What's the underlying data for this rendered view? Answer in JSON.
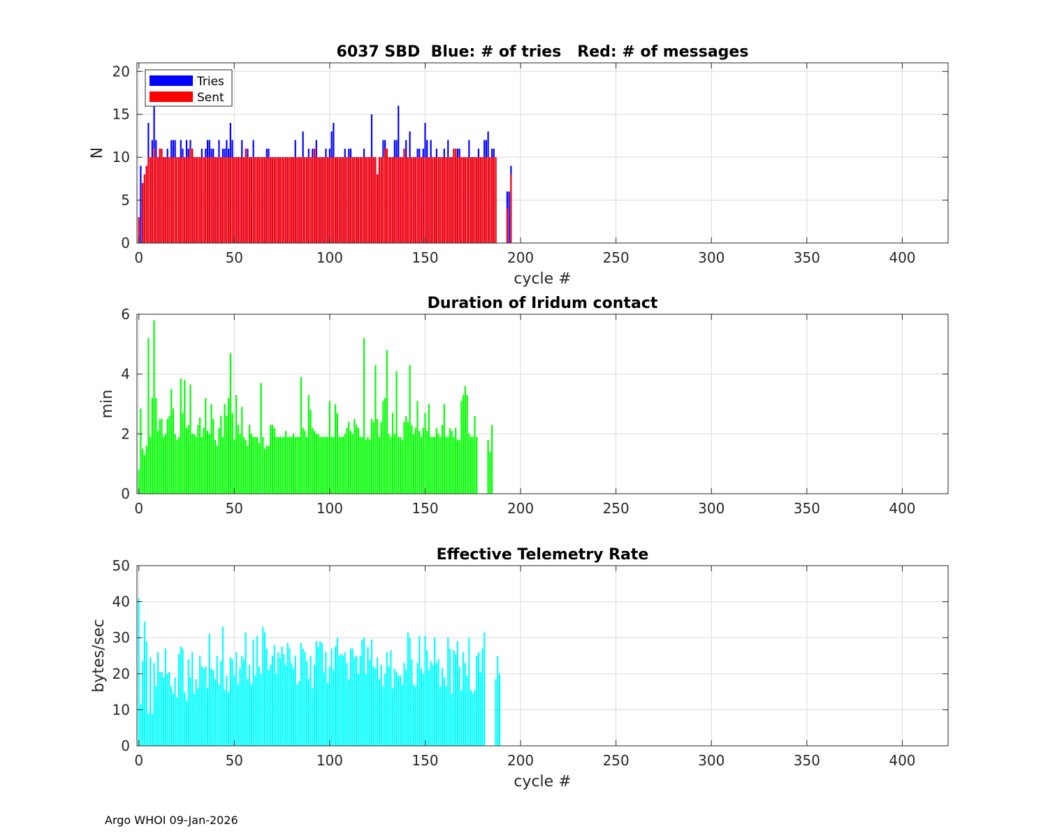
{
  "footer": "Argo WHOI 09-Jan-2026",
  "colors": {
    "tries": "#0000ff",
    "sent": "#ff0000",
    "duration": "#00ff00",
    "rate": "#00ffff",
    "grid": "#d9d9d9"
  },
  "chart_data": [
    {
      "type": "bar",
      "title": "6037 SBD  Blue: # of tries   Red: # of messages",
      "xlabel": "cycle #",
      "ylabel": "N",
      "xlim": [
        -1,
        424
      ],
      "ylim": [
        0,
        21
      ],
      "xticks": [
        0,
        50,
        100,
        150,
        200,
        250,
        300,
        350,
        400
      ],
      "yticks": [
        0,
        5,
        10,
        15,
        20
      ],
      "grid": true,
      "legend_position": "top-left",
      "x_start": 0,
      "series": [
        {
          "name": "Tries",
          "color": "#0000ff",
          "values": [
            3,
            9,
            7,
            8,
            9,
            14,
            10,
            12,
            16,
            12,
            10,
            11,
            11,
            10,
            10,
            11,
            10,
            12,
            12,
            12,
            10,
            10,
            12,
            11,
            10,
            12,
            11,
            12,
            11,
            10,
            10,
            10,
            10,
            11,
            10,
            11,
            12,
            12,
            11,
            11,
            10,
            10,
            12,
            10,
            11,
            11,
            12,
            11,
            14,
            12,
            10,
            10,
            10,
            10,
            12,
            10,
            10,
            11,
            10,
            10,
            12,
            10,
            10,
            10,
            10,
            10,
            10,
            11,
            11,
            10,
            10,
            10,
            10,
            10,
            10,
            10,
            10,
            10,
            10,
            10,
            10,
            10,
            12,
            10,
            10,
            10,
            13,
            10,
            10,
            11,
            10,
            11,
            10,
            12,
            10,
            10,
            10,
            10,
            11,
            10,
            11,
            13,
            14,
            10,
            10,
            10,
            10,
            10,
            11,
            10,
            11,
            11,
            10,
            10,
            10,
            10,
            10,
            10,
            11,
            10,
            10,
            10,
            15,
            10,
            10,
            8,
            10,
            10,
            12,
            12,
            11,
            10,
            10,
            10,
            12,
            12,
            16,
            10,
            10,
            11,
            12,
            10,
            13,
            10,
            10,
            10,
            11,
            11,
            10,
            11,
            14,
            12,
            10,
            12,
            10,
            10,
            11,
            10,
            10,
            10,
            11,
            10,
            12,
            10,
            10,
            11,
            10,
            11,
            11,
            10,
            10,
            10,
            10,
            12,
            10,
            10,
            10,
            10,
            11,
            10,
            10,
            12,
            12,
            13,
            10,
            11,
            11,
            10,
            0,
            0,
            0,
            0,
            0,
            6,
            6,
            9
          ]
        },
        {
          "name": "Sent",
          "color": "#ff0000",
          "values": [
            3,
            0,
            7,
            8,
            9,
            10,
            10,
            10,
            11,
            10,
            10,
            11,
            11,
            10,
            10,
            10,
            10,
            10,
            10,
            10,
            10,
            10,
            10,
            10,
            10,
            10,
            10,
            11,
            11,
            10,
            10,
            10,
            10,
            10,
            10,
            10,
            10,
            10,
            10,
            10,
            10,
            10,
            10,
            10,
            10,
            10,
            10,
            10,
            10,
            10,
            10,
            10,
            10,
            10,
            10,
            10,
            11,
            10,
            10,
            10,
            10,
            10,
            10,
            10,
            10,
            10,
            10,
            10,
            10,
            10,
            10,
            10,
            10,
            10,
            10,
            10,
            10,
            10,
            10,
            10,
            10,
            10,
            10,
            10,
            10,
            10,
            10,
            10,
            10,
            10,
            10,
            10,
            11,
            10,
            10,
            10,
            10,
            10,
            10,
            10,
            10,
            10,
            10,
            10,
            10,
            10,
            10,
            10,
            10,
            10,
            10,
            10,
            10,
            10,
            10,
            10,
            10,
            10,
            10,
            10,
            10,
            10,
            10,
            10,
            10,
            8,
            10,
            10,
            10,
            11,
            11,
            10,
            10,
            10,
            10,
            10,
            10,
            10,
            10,
            11,
            10,
            10,
            10,
            10,
            10,
            10,
            10,
            10,
            10,
            10,
            10,
            10,
            10,
            10,
            10,
            10,
            10,
            10,
            10,
            10,
            10,
            10,
            10,
            10,
            10,
            11,
            11,
            10,
            10,
            10,
            10,
            10,
            10,
            10,
            10,
            10,
            10,
            10,
            10,
            10,
            10,
            10,
            10,
            10,
            10,
            10,
            10,
            10,
            0,
            0,
            0,
            0,
            0,
            4,
            0,
            8
          ]
        }
      ]
    },
    {
      "type": "bar",
      "title": "Duration of Iridum contact",
      "xlabel": "",
      "ylabel": "min",
      "xlim": [
        -1,
        424
      ],
      "ylim": [
        0,
        6
      ],
      "xticks": [
        0,
        50,
        100,
        150,
        200,
        250,
        300,
        350,
        400
      ],
      "yticks": [
        0,
        2,
        4,
        6
      ],
      "grid": true,
      "x_start": 0,
      "series": [
        {
          "name": "",
          "color": "#00ff00",
          "values": [
            0.8,
            2.85,
            1.5,
            1.3,
            1.6,
            5.2,
            1.9,
            3.2,
            5.8,
            3.2,
            2.1,
            2.5,
            2.5,
            1.9,
            2.0,
            2.5,
            2.6,
            3.5,
            2.85,
            2.0,
            1.8,
            1.9,
            3.85,
            2.7,
            3.8,
            2.2,
            2.3,
            3.65,
            2.0,
            2.0,
            1.9,
            2.3,
            2.55,
            1.9,
            2.2,
            3.2,
            2.1,
            2.0,
            3.0,
            2.5,
            1.8,
            1.6,
            2.2,
            2.6,
            1.9,
            3.0,
            2.6,
            3.2,
            4.7,
            2.7,
            1.8,
            3.3,
            2.3,
            2.0,
            2.9,
            1.9,
            1.8,
            1.6,
            2.3,
            2.0,
            1.9,
            1.9,
            1.9,
            1.7,
            3.7,
            1.9,
            1.5,
            1.6,
            1.6,
            2.3,
            2.3,
            2.2,
            1.9,
            1.9,
            1.9,
            1.9,
            1.9,
            2.1,
            1.9,
            1.9,
            1.9,
            2.0,
            1.9,
            1.9,
            1.9,
            3.9,
            2.2,
            2.1,
            1.9,
            3.3,
            2.8,
            2.2,
            2.1,
            2.0,
            2.0,
            1.9,
            1.9,
            1.9,
            1.9,
            1.9,
            3.1,
            1.9,
            1.9,
            3.0,
            2.7,
            1.9,
            1.9,
            1.9,
            2.0,
            2.2,
            2.4,
            2.1,
            2.0,
            2.5,
            2.3,
            2.2,
            1.9,
            1.9,
            5.2,
            1.8,
            1.9,
            1.8,
            2.5,
            2.4,
            4.3,
            2.5,
            1.9,
            2.4,
            3.1,
            3.2,
            4.8,
            2.0,
            1.9,
            2.7,
            2.0,
            4.1,
            1.9,
            1.9,
            1.8,
            2.4,
            2.6,
            2.4,
            4.3,
            2.3,
            2.0,
            2.2,
            3.1,
            2.1,
            1.9,
            2.2,
            2.7,
            2.1,
            3.0,
            1.9,
            1.9,
            1.9,
            2.2,
            2.0,
            1.9,
            2.3,
            3.0,
            1.9,
            1.9,
            2.2,
            2.1,
            1.9,
            2.2,
            1.8,
            1.8,
            3.1,
            3.3,
            3.6,
            3.3,
            2.0,
            1.9,
            1.9,
            2.6,
            1.9,
            0,
            0,
            0,
            0,
            0,
            1.8,
            1.4,
            2.3
          ]
        }
      ]
    },
    {
      "type": "bar",
      "title": "Effective Telemetry Rate",
      "xlabel": "cycle #",
      "ylabel": "bytes/sec",
      "xlim": [
        -1,
        424
      ],
      "ylim": [
        0,
        50
      ],
      "xticks": [
        0,
        50,
        100,
        150,
        200,
        250,
        300,
        350,
        400
      ],
      "yticks": [
        0,
        10,
        20,
        30,
        40,
        50
      ],
      "grid": true,
      "x_start": 0,
      "series": [
        {
          "name": "",
          "color": "#00ffff",
          "values": [
            41,
            11.5,
            23.5,
            34.5,
            29,
            9,
            24.5,
            9,
            23,
            16.5,
            26,
            20.5,
            20.5,
            19,
            27,
            20,
            20.5,
            16.5,
            14.5,
            19,
            13.5,
            25.5,
            27.5,
            27,
            15,
            12.5,
            24,
            19,
            26,
            14.5,
            18.5,
            16,
            25,
            22,
            21.5,
            22,
            16,
            31,
            21.5,
            21,
            18.5,
            25,
            17,
            23.5,
            33,
            15.5,
            19.5,
            15,
            24.5,
            24,
            19.5,
            26,
            17,
            21.5,
            25,
            24,
            31.5,
            18.5,
            22.5,
            17,
            29.5,
            19.5,
            30.5,
            22,
            20,
            33,
            31.5,
            27,
            21,
            22.5,
            25,
            28,
            20,
            26,
            24.5,
            27.5,
            25.5,
            22.5,
            28.5,
            27,
            23,
            21.5,
            25,
            17,
            18,
            28.5,
            27,
            26,
            23.5,
            18.5,
            25,
            16,
            22.5,
            29,
            27.5,
            29,
            28.5,
            20.5,
            26,
            17.5,
            22,
            27,
            21,
            27.5,
            30,
            25,
            25.5,
            25,
            26,
            23,
            18.5,
            27,
            27,
            24.5,
            25,
            20,
            25,
            29.5,
            30,
            20,
            27.5,
            24,
            29.5,
            22,
            21.5,
            24.5,
            18.5,
            22.5,
            16.5,
            20,
            26,
            22,
            26.5,
            16,
            21.5,
            20.5,
            19.5,
            19.5,
            17,
            23,
            21,
            31.5,
            30,
            24,
            17,
            16.5,
            23,
            30.5,
            21.5,
            20,
            30.5,
            26.5,
            21,
            23.5,
            22.5,
            30,
            23,
            24,
            16.5,
            21.5,
            19,
            16.5,
            30,
            27,
            14.5,
            26.5,
            25.5,
            29,
            22,
            15.5,
            26,
            23,
            19.5,
            30,
            15.5,
            14.5,
            15.5,
            25,
            26,
            20.5,
            27,
            31.5,
            0,
            0,
            0,
            0,
            0,
            18.5,
            25,
            20
          ]
        }
      ]
    }
  ]
}
